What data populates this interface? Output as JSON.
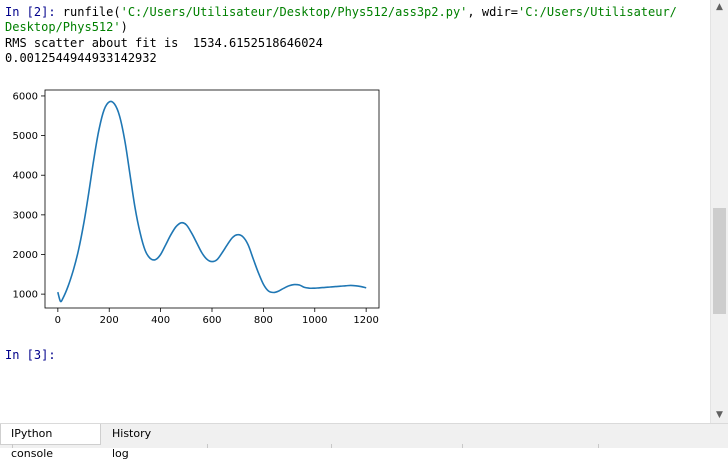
{
  "console": {
    "prompt_in2": "In [2]:",
    "cmd_func": " runfile(",
    "cmd_arg1": "'C:/Users/Utilisateur/Desktop/Phys512/ass3p2.py'",
    "cmd_mid": ", wdir=",
    "cmd_arg2a": "'C:/Users/Utilisateur/",
    "cmd_arg2b": "Desktop/Phys512'",
    "cmd_close": ")",
    "output_line1": "RMS scatter about fit is  1534.6152518646024",
    "output_line2": "0.0012544944933142932",
    "prompt_in3": "In [3]:"
  },
  "chart_data": {
    "type": "line",
    "xlim": [
      -50,
      1250
    ],
    "ylim": [
      650,
      6150
    ],
    "x_ticks": [
      0,
      200,
      400,
      600,
      800,
      1000,
      1200
    ],
    "y_ticks": [
      1000,
      2000,
      3000,
      4000,
      5000,
      6000
    ],
    "line_color": "#1f77b4",
    "series": [
      {
        "x": [
          0,
          10,
          20,
          40,
          60,
          80,
          100,
          120,
          140,
          160,
          180,
          200,
          220,
          240,
          260,
          280,
          300,
          320,
          340,
          360,
          380,
          400,
          420,
          440,
          460,
          480,
          500,
          520,
          540,
          560,
          580,
          600,
          620,
          640,
          660,
          680,
          700,
          720,
          740,
          760,
          780,
          800,
          820,
          840,
          860,
          880,
          900,
          920,
          940,
          960,
          980,
          1000,
          1020,
          1040,
          1060,
          1080,
          1100,
          1120,
          1140,
          1160,
          1180,
          1200
        ],
        "y": [
          1050,
          820,
          900,
          1200,
          1600,
          2100,
          2750,
          3550,
          4400,
          5150,
          5650,
          5850,
          5800,
          5500,
          4900,
          4050,
          3200,
          2550,
          2100,
          1900,
          1870,
          2000,
          2250,
          2500,
          2700,
          2800,
          2750,
          2550,
          2300,
          2050,
          1880,
          1820,
          1870,
          2050,
          2250,
          2430,
          2500,
          2450,
          2250,
          1900,
          1550,
          1250,
          1080,
          1040,
          1080,
          1150,
          1210,
          1240,
          1230,
          1170,
          1150,
          1150,
          1160,
          1170,
          1180,
          1190,
          1200,
          1210,
          1220,
          1210,
          1190,
          1160
        ]
      }
    ]
  }
}
